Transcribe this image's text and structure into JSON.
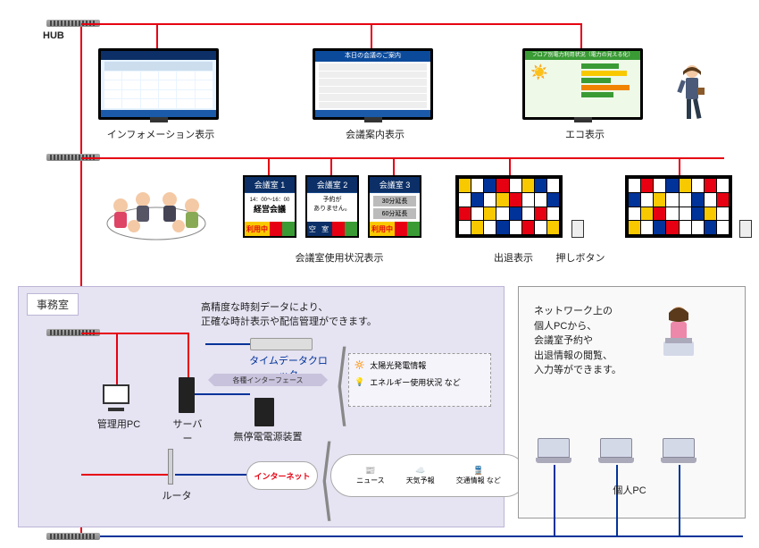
{
  "hub_label": "HUB",
  "displays": {
    "info": "インフォメーション表示",
    "meeting_guide": "会議案内表示",
    "meeting_guide_header": "本日の会議のご案内",
    "eco": "エコ表示",
    "eco_header": "フロア別電力利用状況（電力の見える化）"
  },
  "rooms": {
    "r1": {
      "title": "会議室 1",
      "time": "14：00～16：00",
      "name": "経営会議",
      "status": "利用中"
    },
    "r2": {
      "title": "会議室 2",
      "msg1": "予約が",
      "msg2": "ありません。",
      "status": "空 室"
    },
    "r3": {
      "title": "会議室 3",
      "opt1": "30分延長",
      "opt2": "60分延長",
      "status": "利用中"
    },
    "section_label": "会議室使用状況表示"
  },
  "attendance": {
    "label": "出退表示",
    "button_label": "押しボタン"
  },
  "office": {
    "title": "事務室",
    "clock_note1": "高精度な時刻データにより、",
    "clock_note2": "正確な時計表示や配信管理ができます。",
    "time_clock": "タイムデータクロック",
    "interface": "各種インターフェース",
    "admin_pc": "管理用PC",
    "server": "サーバー",
    "ups": "無停電電源装置",
    "router": "ルータ",
    "internet": "インターネット"
  },
  "ext_info": {
    "solar": "太陽光発電情報",
    "energy": "エネルギー使用状況 など",
    "news": "ニュース",
    "weather": "天気予報",
    "traffic": "交通情報 など"
  },
  "pc_section": {
    "note1": "ネットワーク上の",
    "note2": "個人PCから、",
    "note3": "会議室予約や",
    "note4": "出退情報の閲覧、",
    "note5": "入力等ができます。",
    "label": "個人PC"
  },
  "colors": {
    "red": "#e60012",
    "blue": "#003399",
    "panel_blue": "#0b2f66",
    "yellow": "#f9c900",
    "green": "#3a9b35",
    "orange": "#f08300",
    "office_bg": "#e6e3f2"
  },
  "grid_colors_1": [
    "#f9c900",
    "#fff",
    "#003399",
    "#e60012",
    "#fff",
    "#f9c900",
    "#003399",
    "#fff",
    "#fff",
    "#003399",
    "#fff",
    "#f9c900",
    "#e60012",
    "#fff",
    "#fff",
    "#003399",
    "#e60012",
    "#fff",
    "#f9c900",
    "#fff",
    "#003399",
    "#fff",
    "#e60012",
    "#fff",
    "#fff",
    "#f9c900",
    "#fff",
    "#003399",
    "#fff",
    "#e60012",
    "#fff",
    "#f9c900"
  ],
  "grid_colors_2": [
    "#fff",
    "#e60012",
    "#fff",
    "#003399",
    "#f9c900",
    "#fff",
    "#e60012",
    "#fff",
    "#003399",
    "#fff",
    "#f9c900",
    "#fff",
    "#fff",
    "#003399",
    "#fff",
    "#e60012",
    "#fff",
    "#f9c900",
    "#e60012",
    "#fff",
    "#fff",
    "#003399",
    "#f9c900",
    "#fff",
    "#f9c900",
    "#fff",
    "#003399",
    "#e60012",
    "#fff",
    "#fff",
    "#003399",
    "#fff"
  ]
}
